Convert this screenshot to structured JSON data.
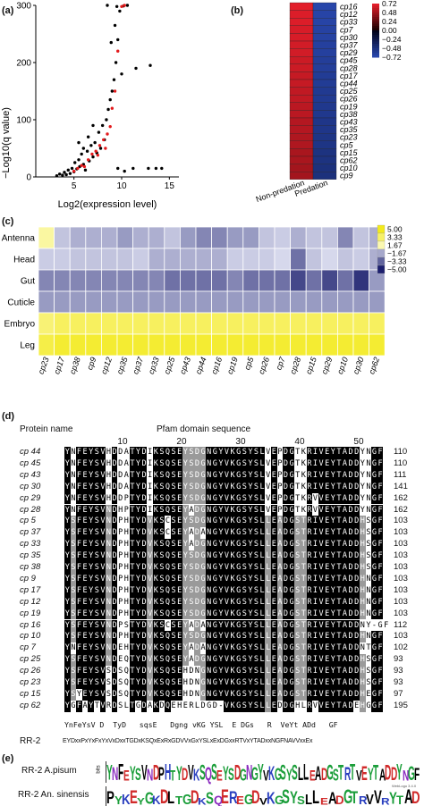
{
  "panel_a": {
    "label": "(a)",
    "ylabel": "−Log10(q value)",
    "xlabel": "Log2(expression level)",
    "chart_data": {
      "type": "scatter",
      "x_ticks": [
        "5",
        "10",
        "15"
      ],
      "y_ticks": [
        "0",
        "100",
        "200",
        "300"
      ],
      "xlim": [
        1,
        16
      ],
      "ylim": [
        0,
        300
      ],
      "series": [
        {
          "name": "",
          "color": "#000000",
          "points": [
            [
              3.2,
              2
            ],
            [
              3.5,
              5
            ],
            [
              3.8,
              3
            ],
            [
              4.0,
              8
            ],
            [
              4.2,
              4
            ],
            [
              4.4,
              12
            ],
            [
              4.6,
              6
            ],
            [
              4.8,
              15
            ],
            [
              5.0,
              9
            ],
            [
              5.1,
              25
            ],
            [
              5.3,
              14
            ],
            [
              5.5,
              30
            ],
            [
              5.6,
              18
            ],
            [
              5.8,
              40
            ],
            [
              6.0,
              22
            ],
            [
              6.2,
              12
            ],
            [
              6.4,
              45
            ],
            [
              6.6,
              28
            ],
            [
              6.8,
              55
            ],
            [
              7.0,
              35
            ],
            [
              7.2,
              60
            ],
            [
              7.4,
              42
            ],
            [
              7.6,
              78
            ],
            [
              7.8,
              50
            ],
            [
              8.0,
              90
            ],
            [
              8.2,
              65
            ],
            [
              8.4,
              100
            ],
            [
              8.6,
              118
            ],
            [
              8.8,
              135
            ],
            [
              9.0,
              150
            ],
            [
              9.2,
              170
            ],
            [
              9.4,
              200
            ],
            [
              9.6,
              240
            ],
            [
              9.8,
              290
            ],
            [
              8.5,
              300
            ],
            [
              9.5,
              298
            ],
            [
              10.2,
              299
            ],
            [
              11.5,
              190
            ],
            [
              13.0,
              195
            ],
            [
              9.6,
              15
            ],
            [
              11.2,
              15
            ],
            [
              12.8,
              15
            ],
            [
              13.6,
              15
            ],
            [
              14.2,
              15
            ],
            [
              10.3,
              10
            ],
            [
              5.5,
              60
            ],
            [
              6.5,
              70
            ],
            [
              7.0,
              90
            ],
            [
              6.0,
              50
            ],
            [
              8.9,
              235
            ],
            [
              9.3,
              265
            ],
            [
              10.0,
              180
            ],
            [
              10.6,
              300
            ]
          ]
        },
        {
          "name": "",
          "color": "#e31a1c",
          "points": [
            [
              5.0,
              10
            ],
            [
              5.4,
              15
            ],
            [
              5.8,
              20
            ],
            [
              6.1,
              18
            ],
            [
              6.5,
              30
            ],
            [
              6.9,
              40
            ],
            [
              7.3,
              45
            ],
            [
              7.7,
              55
            ],
            [
              8.1,
              65
            ],
            [
              8.5,
              75
            ],
            [
              8.8,
              88
            ],
            [
              9.0,
              120
            ],
            [
              9.3,
              150
            ],
            [
              9.6,
              220
            ],
            [
              10.0,
              298
            ],
            [
              10.3,
              300
            ],
            [
              8.3,
              50
            ],
            [
              7.5,
              38
            ]
          ]
        }
      ]
    }
  },
  "panel_b": {
    "label": "(b)",
    "rows": [
      "cp16",
      "cp12",
      "cp33",
      "cp7",
      "cp30",
      "cp37",
      "cp29",
      "cp45",
      "cp28",
      "cp17",
      "cp44",
      "cp25",
      "cp26",
      "cp19",
      "cp38",
      "cp43",
      "cp35",
      "cp23",
      "cp5",
      "cp15",
      "cp62",
      "cp10",
      "cp9"
    ],
    "columns": [
      "Non-predation",
      "Predation"
    ],
    "legend_values": [
      "0.72",
      "0.48",
      "0.24",
      "0.00",
      "−0.24",
      "−0.48",
      "−0.72"
    ],
    "chart_data": {
      "type": "heatmap",
      "values": [
        [
          0.72,
          -0.72
        ],
        [
          0.7,
          -0.7
        ],
        [
          0.7,
          -0.7
        ],
        [
          0.68,
          -0.68
        ],
        [
          0.68,
          -0.68
        ],
        [
          0.66,
          -0.66
        ],
        [
          0.66,
          -0.66
        ],
        [
          0.64,
          -0.64
        ],
        [
          0.64,
          -0.64
        ],
        [
          0.62,
          -0.62
        ],
        [
          0.62,
          -0.62
        ],
        [
          0.6,
          -0.6
        ],
        [
          0.6,
          -0.6
        ],
        [
          0.58,
          -0.58
        ],
        [
          0.58,
          -0.58
        ],
        [
          0.56,
          -0.56
        ],
        [
          0.56,
          -0.56
        ],
        [
          0.54,
          -0.54
        ],
        [
          0.54,
          -0.54
        ],
        [
          0.52,
          -0.52
        ],
        [
          0.52,
          -0.52
        ],
        [
          0.5,
          -0.5
        ],
        [
          0.5,
          -0.5
        ]
      ],
      "range": [
        -0.72,
        0.72
      ]
    }
  },
  "panel_c": {
    "label": "(c)",
    "rows": [
      "Antenna",
      "Head",
      "Gut",
      "Cuticle",
      "Embryo",
      "Leg"
    ],
    "columns": [
      "cp23",
      "cp17",
      "cp38",
      "cp9",
      "cp12",
      "cp35",
      "cp37",
      "cp33",
      "cp25",
      "cp43",
      "cp44",
      "cp16",
      "cp19",
      "cp5",
      "cp26",
      "cp7",
      "cp28",
      "cp15",
      "cp29",
      "cp10",
      "cp30",
      "cp62"
    ],
    "legend_values": [
      "5.00",
      "3.33",
      "1.67",
      "−1.67",
      "−3.33",
      "−5.00"
    ],
    "chart_data": {
      "type": "heatmap",
      "range": [
        -5,
        5
      ],
      "values": [
        [
          2.0,
          -1.0,
          -1.5,
          -1.5,
          -1.5,
          -2.0,
          -1.5,
          -1.5,
          -1.0,
          -2.0,
          -2.5,
          -2.5,
          -2.0,
          -2.0,
          -1.0,
          -0.8,
          -1.5,
          -1.0,
          -1.0,
          -2.5,
          -1.0,
          -1.5
        ],
        [
          -0.8,
          -0.8,
          -1.0,
          -1.0,
          -1.0,
          -1.0,
          -0.8,
          -1.5,
          -1.5,
          -1.5,
          -1.5,
          -1.5,
          -0.8,
          -0.8,
          -0.8,
          -0.5,
          -3.0,
          -1.0,
          -0.5,
          -1.0,
          -0.8,
          -1.5
        ],
        [
          -2.5,
          -2.5,
          -2.5,
          -2.5,
          -2.5,
          -2.5,
          -2.5,
          -2.5,
          -3.0,
          -3.0,
          -3.0,
          -3.0,
          -2.5,
          -3.0,
          -3.0,
          -3.0,
          -4.0,
          -3.0,
          -4.0,
          -3.0,
          -4.5,
          -2.0
        ],
        [
          -2.0,
          -2.0,
          -2.0,
          -2.0,
          -2.0,
          -2.0,
          -2.0,
          -2.0,
          -2.0,
          -2.0,
          -2.0,
          -2.0,
          -2.0,
          -2.0,
          -2.0,
          -2.0,
          -2.0,
          -2.0,
          -2.0,
          -2.0,
          -2.0,
          -2.0
        ],
        [
          3.0,
          3.5,
          3.5,
          3.5,
          3.5,
          3.5,
          3.5,
          3.5,
          3.5,
          3.5,
          3.5,
          3.5,
          3.5,
          3.5,
          3.5,
          3.5,
          3.5,
          3.5,
          3.5,
          3.5,
          3.5,
          3.5
        ],
        [
          4.0,
          4.5,
          4.5,
          4.5,
          4.5,
          4.5,
          4.5,
          4.5,
          4.5,
          4.5,
          4.5,
          4.5,
          4.5,
          4.5,
          4.5,
          4.5,
          4.5,
          4.5,
          4.5,
          4.5,
          4.5,
          4.5
        ]
      ]
    }
  },
  "panel_d": {
    "label": "(d)",
    "protein_header": "Protein name",
    "domain_header": "Pfam domain sequence",
    "ruler": [
      "10",
      "20",
      "30",
      "40",
      "50"
    ],
    "rows": [
      {
        "name": "cp 44",
        "seq": "YNFEYSVHDDATYDIKSQSEYSDGNGYVKGSYSLVEPDGTKRIVEYTADDYNGF",
        "len": "110"
      },
      {
        "name": "cp 45",
        "seq": "YNFEYSVHDDATYDIKSQSEYSDGNGYVKGSYSLVEPDGTKRIVEYTADDYNGF",
        "len": "110"
      },
      {
        "name": "cp 43",
        "seq": "YNFEYSVHDDATYDIKSQSEYSDGNGYVKGSYSLVEPDGTKRIVEYTADDYNGF",
        "len": "111"
      },
      {
        "name": "cp 30",
        "seq": "YNFEYSVHDDATYDIKSQSEYSDGNGYVKGSYSLVEPDGTKRIVEYTADDYNGF",
        "len": "141"
      },
      {
        "name": "cp 29",
        "seq": "YNFEYSVHDDPTYDIKSQSEYSDGNGYVKGSYSLVEPDGTKRVVEYTADDYNGF",
        "len": "162"
      },
      {
        "name": "cp 28",
        "seq": "YNFEYSVNDHPTYDIKSQSEYADGNGYVKGSYSLVEPDGTKRVVEYTADDYNGF",
        "len": "162"
      },
      {
        "name": "cp 5",
        "seq": "YSFEYSVNDPHTYDVKSCSEYSDGNGYVKGSYSLLEADGSTRIVEYTADDHSGF",
        "len": "103"
      },
      {
        "name": "cp 37",
        "seq": "YSFEYSVNDPHTYDVKSCSEYADANGYVKGSYSLLEADGSTRIVEYTADDHSGF",
        "len": "103"
      },
      {
        "name": "cp 33",
        "seq": "YSFEYSVNDPHTYDVKSQSEYADGNGYVKGSYSLLEADGSTRIVEYTADDHSGF",
        "len": "103"
      },
      {
        "name": "cp 35",
        "seq": "YSFEYSVNDPHTYDVKSQSEYSDGNGYVKGSYSLLEADGSTRIVEYTADDHSGF",
        "len": "103"
      },
      {
        "name": "cp 38",
        "seq": "YSFEYSVNDPHTYDVKSQSEYSDGNGYVKGSYSLLEADGSTRIVEYTADDHSGF",
        "len": "103"
      },
      {
        "name": "cp 9",
        "seq": "YSFEYSVNDPHTYDVKSQSEYSDGNGYVKGSYSLLEADGSTRIVEYTADDHNGF",
        "len": "103"
      },
      {
        "name": "cp 17",
        "seq": "YSFEYSVNDPHTYDVKSQSEYSDGNGYVKGSYSLLEADGSTRIVEYTADDHNGF",
        "len": "103"
      },
      {
        "name": "cp 12",
        "seq": "YSFEYSVNDPHTYDVKSQSEYSDGNGYVKGSYSLLEADGSTRIVEYTADDHNGF",
        "len": "103"
      },
      {
        "name": "cp 19",
        "seq": "YSFEYSVNDPHTYDVKSQSEYSDGNGYVKGSYSLLEADGSTRIVEYTADDHNGF",
        "len": "103"
      },
      {
        "name": "cp 16",
        "seq": "YSFEYSVNDPSTYDVKSCSEYADANGYVKGSYSLLEADGSTRIVEYTADDNY-GF",
        "len": "112"
      },
      {
        "name": "cp 10",
        "seq": "YSFEYSVNDPHTYDVKSQSEYSDGNGYVKGSYSLLEADGSTRIVEYTADDHNGF",
        "len": "103"
      },
      {
        "name": "cp 7",
        "seq": "YNFEYSVNDEHTYDVKSQSEYADANGYVKGSYSLLEADGSTRIVEYTADDNTGF",
        "len": "102"
      },
      {
        "name": "cp 25",
        "seq": "YSFEYSVNDEQTYDVKSQSEYADGNGYVKGSYSLLEADGSTRIVEYTADDHSGF",
        "len": "93"
      },
      {
        "name": "cp 26",
        "seq": "YSFEYSVSDSQTYDVKSQSEHDNGNGYVKGSYSLLEADGSTRIVEYTADDHSGF",
        "len": "93"
      },
      {
        "name": "cp 23",
        "seq": "YSFEYSVSDSQTYDVKSQSEHDNGNGYVKGSYSLLEADGSTRIVEYTADDHSGF",
        "len": "93"
      },
      {
        "name": "cp 15",
        "seq": "YSYEYSVSDSQTYDVKSQSEHDNGNGYVKGSYSLLEADGSTRIVEYTADDHEGF",
        "len": "97"
      },
      {
        "name": "cp 62",
        "seq": "YGFAYTVRDSLTGDAKDQEHERLDGD-VKGSYSLLEDDGHLRVVEYTADEHGGF",
        "len": "195"
      }
    ],
    "consensus": "YnFeYsV D  TyD   sqsE   Dgng vKG YSL  E DGs   R  VeYt ADd   GF",
    "rr2_label": "RR-2",
    "rr2_motif": "EYDxxPxYxFxYxVxDxxTGDxKSQxExRxGDVVxGxYSLxExDGxxRTVxYTADxxNGFNAVVxxEx"
  },
  "panel_e": {
    "label": "(e)",
    "logo1_label": "RR-2 A.pisum",
    "logo1_seq": "YNFEYSVNDPHTYDVKSQSEYSDGNGYVKGSYSLLEADGSTRTVEYTADDYNGF",
    "logo2_label": "RR-2 An. sinensis",
    "logo2_seq": "PYKEYGKDLTGDKSQEREGDVKGSYSLLEADGTRVVRYTAD",
    "bits_label": "bits",
    "credit": "WebLogo 3.4.0"
  },
  "colors": {
    "heat_hi": "#e11d2a",
    "heat_lo": "#2544a8",
    "yellow": "#f2ea1c",
    "navy": "#1c1f6e",
    "align_black": "#000000",
    "align_gray": "#9a9a9a"
  }
}
